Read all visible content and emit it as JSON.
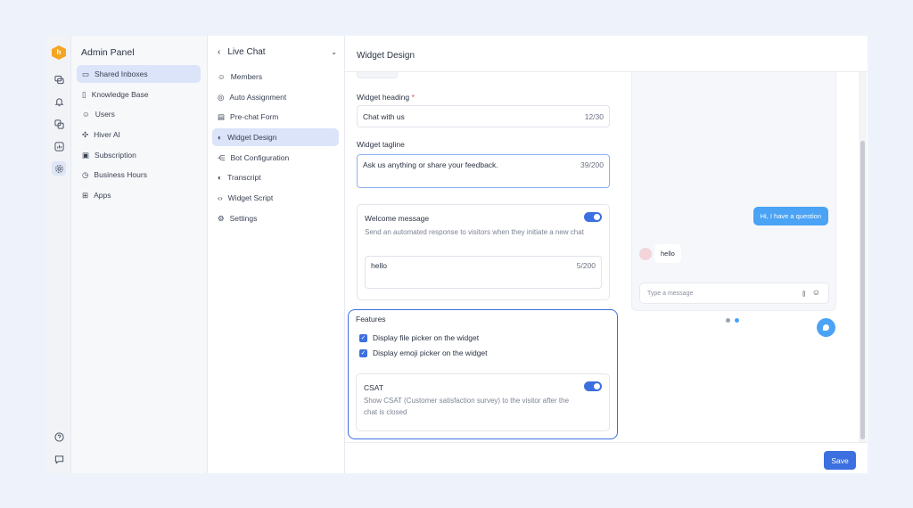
{
  "rail": {
    "logo": "h",
    "icons": [
      "chat-icon",
      "bell-icon",
      "copy-icon",
      "chart-icon",
      "settings-icon"
    ],
    "bottom_icons": [
      "help-icon",
      "feedback-icon"
    ],
    "active": "settings-icon"
  },
  "admin": {
    "title": "Admin Panel",
    "items": [
      {
        "label": "Shared Inboxes",
        "icon": "inbox-icon",
        "active": true
      },
      {
        "label": "Knowledge Base",
        "icon": "book-icon"
      },
      {
        "label": "Users",
        "icon": "user-icon"
      },
      {
        "label": "Hiver AI",
        "icon": "sparkle-icon"
      },
      {
        "label": "Subscription",
        "icon": "wallet-icon"
      },
      {
        "label": "Business Hours",
        "icon": "clock-icon"
      },
      {
        "label": "Apps",
        "icon": "apps-icon"
      }
    ]
  },
  "sub": {
    "title": "Live Chat",
    "items": [
      {
        "label": "Members",
        "icon": "user-icon"
      },
      {
        "label": "Auto Assignment",
        "icon": "check-circle-icon"
      },
      {
        "label": "Pre-chat Form",
        "icon": "form-icon"
      },
      {
        "label": "Widget Design",
        "icon": "palette-icon",
        "active": true
      },
      {
        "label": "Bot Configuration",
        "icon": "bot-icon"
      },
      {
        "label": "Transcript",
        "icon": "palette-icon"
      },
      {
        "label": "Widget Script",
        "icon": "code-icon"
      },
      {
        "label": "Settings",
        "icon": "settings-icon"
      }
    ]
  },
  "main": {
    "title": "Widget Design",
    "heading_label": "Widget heading",
    "required_mark": "*",
    "heading_value": "Chat with us",
    "heading_count": "12/30",
    "tagline_label": "Widget tagline",
    "tagline_value": "Ask us anything or share your feedback.",
    "tagline_count": "39/200",
    "welcome": {
      "title": "Welcome message",
      "desc": "Send an automated response to visitors when they initiate a new chat",
      "value": "hello",
      "count": "5/200",
      "enabled": true
    },
    "features": {
      "title": "Features",
      "file_picker": "Display file picker on the widget",
      "emoji_picker": "Display emoji picker on the widget",
      "file_checked": true,
      "emoji_checked": true
    },
    "csat": {
      "title": "CSAT",
      "desc": "Show CSAT (Customer satisfaction survey) to the visitor after the chat is closed",
      "enabled": true
    },
    "save": "Save"
  },
  "preview": {
    "visitor_msg": "Hi, I have a question",
    "agent_msg": "hello",
    "input_placeholder": "Type a message",
    "accent": "#4aa3f5"
  },
  "colors": {
    "primary": "#3c6fe0",
    "highlight": "#dbe4f8"
  }
}
